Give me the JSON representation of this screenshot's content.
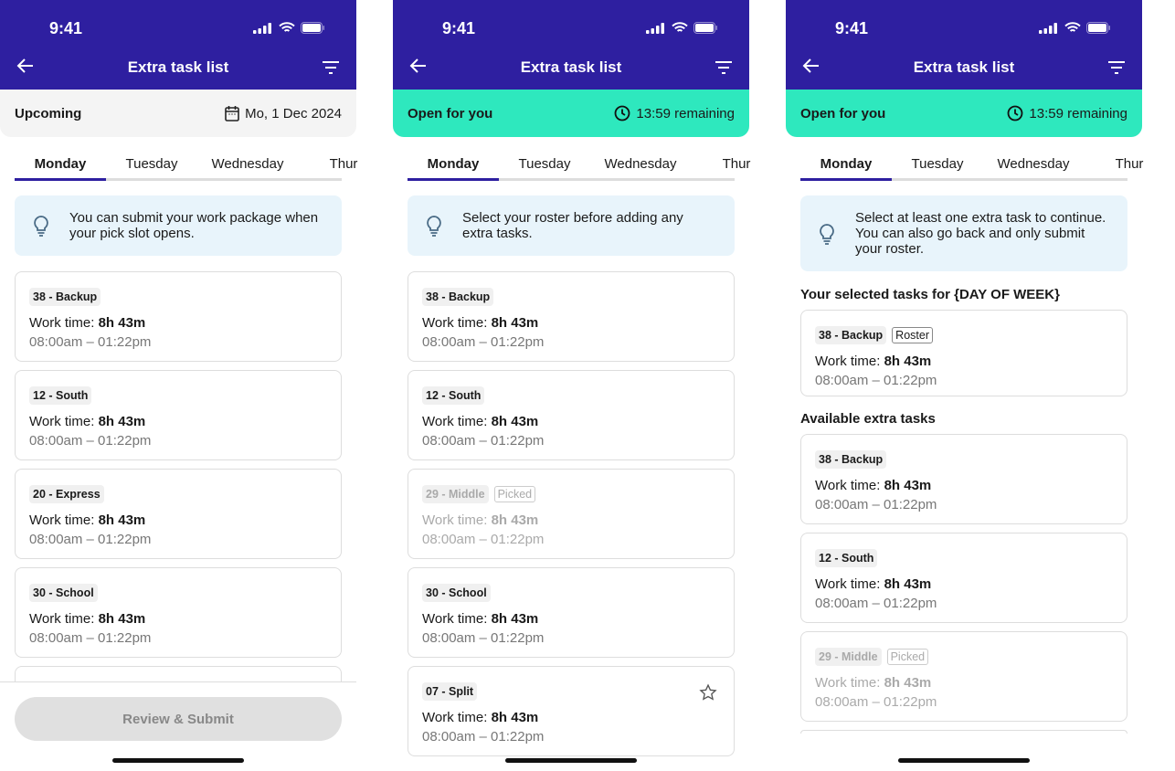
{
  "status_time": "9:41",
  "title": "Extra task list",
  "colors": {
    "header": "#2e1fa0",
    "upcoming_banner": "#f4f4f4",
    "open_banner": "#2ee8be",
    "info_bg": "#e8f4fb"
  },
  "tabs": [
    "Monday",
    "Tuesday",
    "Wednesday",
    "Thur"
  ],
  "screens": [
    {
      "banner": {
        "label": "Upcoming",
        "value": "Mo, 1 Dec 2024",
        "icon": "calendar-icon",
        "style": "upcoming"
      },
      "info": "You can submit your work package when your pick slot opens.",
      "sections": [
        {
          "heading": "",
          "cards": [
            {
              "tag": "38 - Backup",
              "work_label": "Work time:",
              "work": "8h 43m",
              "range": "08:00am – 01:22pm"
            },
            {
              "tag": "12 - South",
              "work_label": "Work time:",
              "work": "8h 43m",
              "range": "08:00am – 01:22pm"
            },
            {
              "tag": "20 - Express",
              "work_label": "Work time:",
              "work": "8h 43m",
              "range": "08:00am – 01:22pm"
            },
            {
              "tag": "30 - School",
              "work_label": "Work time:",
              "work": "8h 43m",
              "range": "08:00am – 01:22pm"
            },
            {
              "tag": "",
              "work_label": "",
              "work": "",
              "range": ""
            }
          ]
        }
      ],
      "submit_label": "Review & Submit"
    },
    {
      "banner": {
        "label": "Open for you",
        "value": "13:59 remaining",
        "icon": "clock-icon",
        "style": "open"
      },
      "info": "Select your roster before adding any extra tasks.",
      "sections": [
        {
          "heading": "",
          "cards": [
            {
              "tag": "38 - Backup",
              "work_label": "Work time:",
              "work": "8h 43m",
              "range": "08:00am – 01:22pm"
            },
            {
              "tag": "12 - South",
              "work_label": "Work time:",
              "work": "8h 43m",
              "range": "08:00am – 01:22pm"
            },
            {
              "tag": "29 - Middle",
              "badge": "Picked",
              "disabled": true,
              "work_label": "Work time:",
              "work": "8h 43m",
              "range": "08:00am – 01:22pm"
            },
            {
              "tag": "30 - School",
              "work_label": "Work time:",
              "work": "8h 43m",
              "range": "08:00am – 01:22pm"
            },
            {
              "tag": "07 - Split",
              "star": true,
              "work_label": "Work time:",
              "work": "8h 43m",
              "range": "08:00am – 01:22pm"
            }
          ]
        }
      ]
    },
    {
      "banner": {
        "label": "Open for you",
        "value": "13:59 remaining",
        "icon": "clock-icon",
        "style": "open"
      },
      "info": "Select at least one extra task to continue. You can also go back and only submit your roster.",
      "sections": [
        {
          "heading": "Your selected tasks for {DAY OF WEEK}",
          "selected": true,
          "cards": [
            {
              "tag": "38 - Backup",
              "badge": "Roster",
              "work_label": "Work time:",
              "work": "8h 43m",
              "range": "08:00am – 01:22pm"
            }
          ]
        },
        {
          "heading": "Available extra tasks",
          "cards": [
            {
              "tag": "38 - Backup",
              "work_label": "Work time:",
              "work": "8h 43m",
              "range": "08:00am – 01:22pm"
            },
            {
              "tag": "12 - South",
              "work_label": "Work time:",
              "work": "8h 43m",
              "range": "08:00am – 01:22pm"
            },
            {
              "tag": "29 - Middle",
              "badge": "Picked",
              "disabled": true,
              "work_label": "Work time:",
              "work": "8h 43m",
              "range": "08:00am – 01:22pm"
            },
            {
              "tag": "",
              "work_label": "",
              "work": "",
              "range": ""
            }
          ]
        }
      ]
    }
  ]
}
